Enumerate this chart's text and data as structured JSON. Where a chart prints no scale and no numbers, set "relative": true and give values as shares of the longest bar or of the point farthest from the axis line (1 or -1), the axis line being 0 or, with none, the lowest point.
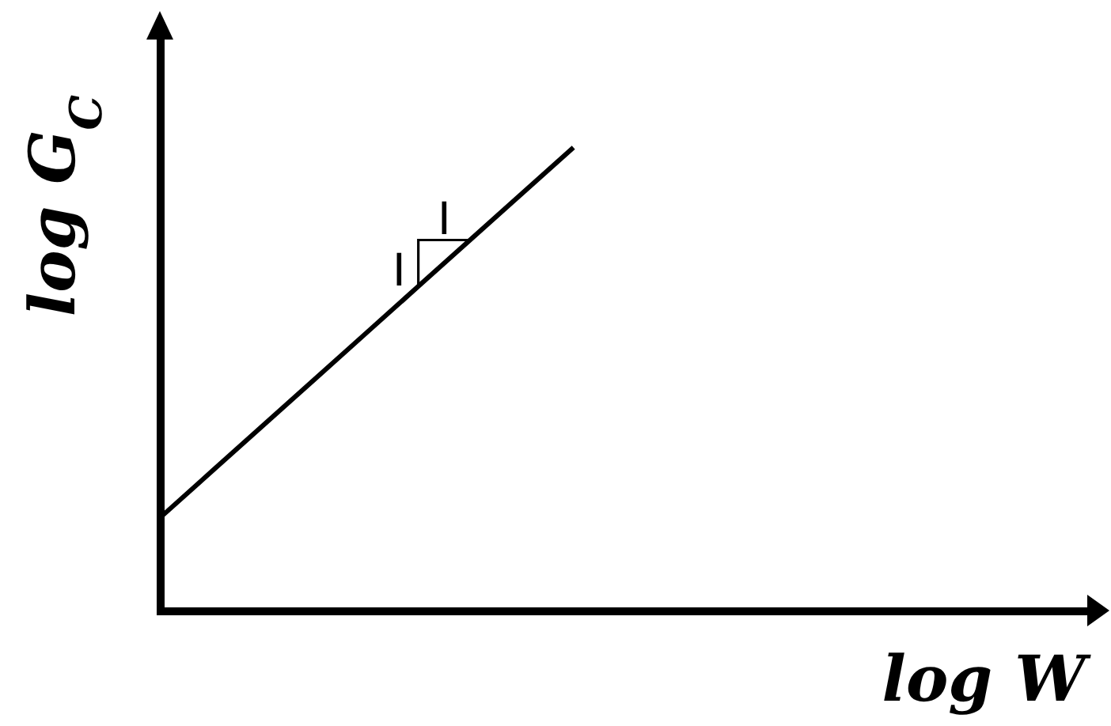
{
  "chart_data": {
    "type": "line",
    "xlabel": "log W",
    "ylabel": "log G$_{C}$",
    "relative": true,
    "color": "#000000",
    "categories": [
      null,
      null,
      null,
      null,
      null,
      null,
      null,
      null,
      null,
      null,
      null,
      null,
      null,
      null,
      null,
      null,
      null,
      null,
      null
    ],
    "values": [
      0.2,
      0.3,
      0.4,
      0.5,
      0.6,
      0.7,
      0.8,
      0.9,
      1,
      null,
      null,
      null,
      null,
      null,
      null,
      null,
      null,
      null,
      null
    ],
    "annotations": [
      "I",
      "I"
    ]
  }
}
